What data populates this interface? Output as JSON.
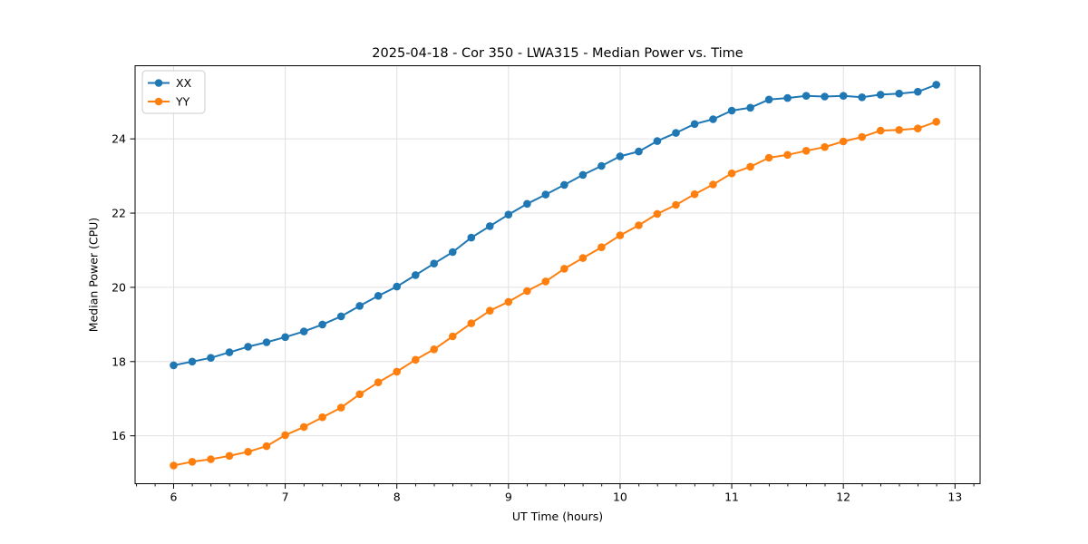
{
  "chart_data": {
    "type": "line",
    "title": "2025-04-18 - Cor 350 - LWA315 - Median Power vs. Time",
    "xlabel": "UT Time (hours)",
    "ylabel": "Median Power (CPU)",
    "xlim": [
      5.655,
      13.225
    ],
    "ylim": [
      14.71,
      25.97
    ],
    "x_ticks": [
      6,
      7,
      8,
      9,
      10,
      11,
      12,
      13
    ],
    "y_ticks": [
      16,
      18,
      20,
      22,
      24
    ],
    "x_minor_tick_step": 0.1667,
    "grid": true,
    "legend_position": "upper-left",
    "x": [
      6,
      6.167,
      6.333,
      6.5,
      6.667,
      6.833,
      7,
      7.167,
      7.333,
      7.5,
      7.667,
      7.833,
      8,
      8.167,
      8.333,
      8.5,
      8.667,
      8.833,
      9,
      9.167,
      9.333,
      9.5,
      9.667,
      9.833,
      10,
      10.167,
      10.333,
      10.5,
      10.667,
      10.833,
      11,
      11.167,
      11.333,
      11.5,
      11.667,
      11.833,
      12,
      12.167,
      12.333,
      12.5,
      12.667,
      12.833
    ],
    "series": [
      {
        "name": "XX",
        "color": "#1f77b4",
        "values": [
          17.9,
          18.0,
          18.1,
          18.25,
          18.4,
          18.52,
          18.66,
          18.81,
          19.0,
          19.22,
          19.5,
          19.77,
          20.02,
          20.33,
          20.64,
          20.95,
          21.34,
          21.65,
          21.96,
          22.25,
          22.5,
          22.76,
          23.03,
          23.27,
          23.53,
          23.66,
          23.94,
          24.16,
          24.4,
          24.53,
          24.76,
          24.84,
          25.06,
          25.1,
          25.16,
          25.14,
          25.16,
          25.12,
          25.19,
          25.22,
          25.27,
          25.46
        ]
      },
      {
        "name": "YY",
        "color": "#ff7f0e",
        "values": [
          15.2,
          15.3,
          15.37,
          15.46,
          15.57,
          15.72,
          16.02,
          16.24,
          16.5,
          16.76,
          17.12,
          17.44,
          17.73,
          18.05,
          18.33,
          18.68,
          19.03,
          19.37,
          19.61,
          19.9,
          20.16,
          20.5,
          20.79,
          21.08,
          21.4,
          21.67,
          21.98,
          22.22,
          22.51,
          22.77,
          23.07,
          23.25,
          23.49,
          23.57,
          23.68,
          23.78,
          23.93,
          24.05,
          24.22,
          24.24,
          24.28,
          24.46
        ]
      }
    ],
    "style": {
      "grid_color": "#e0e0e0",
      "spine_color": "#000000",
      "background": "#ffffff",
      "marker_radius": 4.3,
      "line_width": 2
    }
  }
}
